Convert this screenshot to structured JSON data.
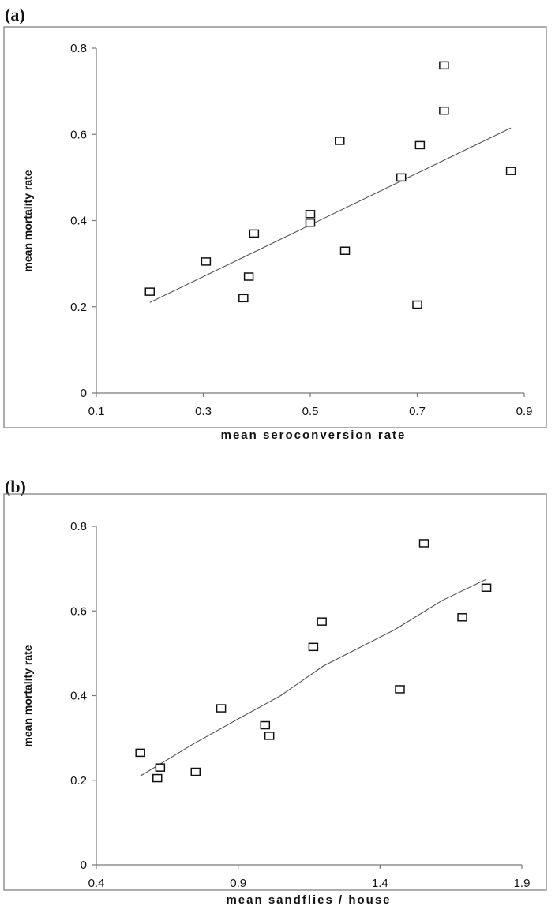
{
  "charts": [
    {
      "panel": "(a)",
      "chart_data": {
        "type": "scatter",
        "xlabel": "mean seroconversion rate",
        "ylabel": "mean mortality rate",
        "xlim": [
          0.1,
          0.9
        ],
        "ylim": [
          0,
          0.8
        ],
        "xticks": [
          "0.1",
          "0.3",
          "0.5",
          "0.7",
          "0.9"
        ],
        "yticks": [
          "0",
          "0.2",
          "0.4",
          "0.6",
          "0.8"
        ],
        "grid": false,
        "marker": "open-square",
        "series": [
          {
            "points": [
              [
                0.2,
                0.235
              ],
              [
                0.305,
                0.305
              ],
              [
                0.375,
                0.22
              ],
              [
                0.385,
                0.27
              ],
              [
                0.395,
                0.37
              ],
              [
                0.5,
                0.415
              ],
              [
                0.5,
                0.395
              ],
              [
                0.555,
                0.585
              ],
              [
                0.565,
                0.33
              ],
              [
                0.67,
                0.5
              ],
              [
                0.7,
                0.205
              ],
              [
                0.705,
                0.575
              ],
              [
                0.75,
                0.76
              ],
              [
                0.75,
                0.655
              ],
              [
                0.875,
                0.515
              ]
            ],
            "trendline": [
              [
                0.2,
                0.21
              ],
              [
                0.875,
                0.615
              ]
            ]
          }
        ]
      }
    },
    {
      "panel": "(b)",
      "chart_data": {
        "type": "scatter",
        "xlabel": "mean sandflies / house",
        "ylabel": "mean mortality rate",
        "xlim": [
          0.4,
          1.9
        ],
        "ylim": [
          0,
          0.8
        ],
        "xticks": [
          "0.4",
          "0.9",
          "1.4",
          "1.9"
        ],
        "yticks": [
          "0",
          "0.2",
          "0.4",
          "0.6",
          "0.8"
        ],
        "grid": false,
        "marker": "open-square",
        "series": [
          {
            "points": [
              [
                0.555,
                0.265
              ],
              [
                0.615,
                0.205
              ],
              [
                0.625,
                0.23
              ],
              [
                0.75,
                0.22
              ],
              [
                0.84,
                0.37
              ],
              [
                0.995,
                0.33
              ],
              [
                1.01,
                0.305
              ],
              [
                1.165,
                0.515
              ],
              [
                1.195,
                0.575
              ],
              [
                1.47,
                0.415
              ],
              [
                1.555,
                0.76
              ],
              [
                1.69,
                0.585
              ],
              [
                1.775,
                0.655
              ]
            ],
            "trendline": [
              [
                0.555,
                0.21
              ],
              [
                0.74,
                0.285
              ],
              [
                0.9,
                0.345
              ],
              [
                1.05,
                0.4
              ],
              [
                1.2,
                0.47
              ],
              [
                1.45,
                0.555
              ],
              [
                1.62,
                0.625
              ],
              [
                1.775,
                0.675
              ]
            ]
          }
        ]
      }
    }
  ]
}
